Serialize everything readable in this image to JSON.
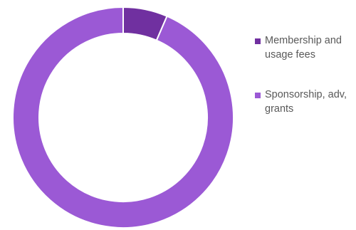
{
  "chart_data": {
    "type": "pie",
    "variant": "doughnut",
    "title": "",
    "categories": [
      "Membership and usage fees",
      "Sponsorship, adv, grants"
    ],
    "values": [
      6.5,
      93.5
    ],
    "colors": [
      "#7030a0",
      "#9b59d5"
    ],
    "legend_placement": "right",
    "data_labels": false,
    "series": [
      {
        "values": [
          6.5,
          93.5
        ]
      }
    ]
  },
  "legend": {
    "items": [
      {
        "label": "Membership and usage fees",
        "color": "#7030a0"
      },
      {
        "label": "Sponsorship, adv, grants",
        "color": "#9b59d5"
      }
    ]
  }
}
